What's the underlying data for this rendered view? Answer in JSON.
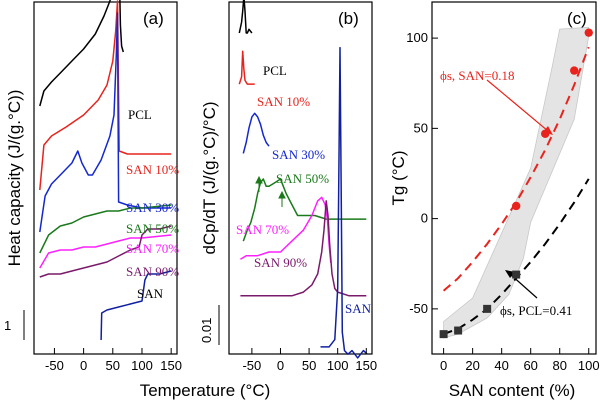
{
  "figure": {
    "panel_a": {
      "label": "(a)",
      "ylabel": "Heat capacity (J/(g.°C))",
      "scale_bar_label": "1"
    },
    "panel_b": {
      "label": "(b)",
      "ylabel": "dCp/dT (J/(g.°C)/°C)",
      "scale_bar_label": "0.01"
    },
    "panel_c": {
      "label": "(c)",
      "ylabel": "Tg (°C)",
      "xlabel": "SAN content (%)",
      "annotation_san": "ϕs, SAN=0.18",
      "annotation_pcl": "ϕs, PCL=0.41"
    },
    "shared_xlabel": "Temperature (°C)"
  },
  "chart_data": [
    {
      "id": "a",
      "type": "line",
      "title": "(a)",
      "xlabel": "Temperature (°C)",
      "ylabel": "Heat capacity (J/(g.°C))",
      "xlim": [
        -85,
        160
      ],
      "xticks": [
        -50,
        0,
        50,
        100,
        150
      ],
      "scale_bar": 1,
      "series": [
        {
          "name": "PCL",
          "color": "#000000",
          "offset": 0,
          "pts": [
            [
              -75,
              7.8
            ],
            [
              -68,
              8.3
            ],
            [
              -55,
              8.6
            ],
            [
              -40,
              8.9
            ],
            [
              -20,
              9.3
            ],
            [
              0,
              9.7
            ],
            [
              20,
              10.2
            ],
            [
              35,
              10.8
            ],
            [
              45,
              11.3
            ],
            [
              52,
              11.8
            ],
            [
              56,
              12.8
            ],
            [
              59,
              13.3
            ],
            [
              61,
              12.5
            ],
            [
              63,
              10.5
            ],
            [
              65,
              9.8
            ],
            [
              68,
              9.6
            ]
          ]
        },
        {
          "name": "SAN 10%",
          "color": "#e8231d",
          "offset": 0,
          "pts": [
            [
              -75,
              5.0
            ],
            [
              -68,
              6.5
            ],
            [
              -55,
              6.8
            ],
            [
              -30,
              7.1
            ],
            [
              0,
              7.5
            ],
            [
              25,
              8.0
            ],
            [
              40,
              8.5
            ],
            [
              50,
              9.3
            ],
            [
              55,
              10.3
            ],
            [
              58,
              11.3
            ],
            [
              61,
              6.3
            ],
            [
              75,
              6.2
            ],
            [
              100,
              6.2
            ],
            [
              150,
              6.2
            ]
          ]
        },
        {
          "name": "SAN 30%",
          "color": "#1528d0",
          "offset": 0,
          "pts": [
            [
              -75,
              3.6
            ],
            [
              -66,
              4.8
            ],
            [
              -55,
              5.2
            ],
            [
              -40,
              5.5
            ],
            [
              -20,
              5.9
            ],
            [
              -10,
              6.3
            ],
            [
              -3,
              5.9
            ],
            [
              8,
              5.5
            ],
            [
              15,
              5.5
            ],
            [
              30,
              6.0
            ],
            [
              45,
              6.8
            ],
            [
              52,
              7.5
            ],
            [
              56,
              9.5
            ],
            [
              58,
              10.9
            ],
            [
              60,
              4.6
            ],
            [
              75,
              4.5
            ],
            [
              100,
              4.4
            ],
            [
              150,
              4.4
            ]
          ]
        },
        {
          "name": "SAN 50%",
          "color": "#1a7a1a",
          "offset": 0,
          "pts": [
            [
              -75,
              2.9
            ],
            [
              -60,
              3.5
            ],
            [
              -40,
              3.8
            ],
            [
              -20,
              3.9
            ],
            [
              0,
              4.1
            ],
            [
              20,
              4.2
            ],
            [
              40,
              4.3
            ],
            [
              60,
              4.3
            ],
            [
              80,
              4.4
            ],
            [
              100,
              4.4
            ],
            [
              150,
              4.5
            ]
          ]
        },
        {
          "name": "SAN 70%",
          "color": "#ff20ff",
          "offset": 0,
          "pts": [
            [
              -75,
              2.4
            ],
            [
              -60,
              2.9
            ],
            [
              -40,
              3.0
            ],
            [
              -20,
              3.0
            ],
            [
              0,
              3.1
            ],
            [
              20,
              3.1
            ],
            [
              40,
              3.2
            ],
            [
              60,
              3.3
            ],
            [
              80,
              3.4
            ],
            [
              100,
              3.4
            ],
            [
              150,
              3.5
            ]
          ]
        },
        {
          "name": "SAN 90%",
          "color": "#7a1a6a",
          "offset": 0,
          "pts": [
            [
              -75,
              2.1
            ],
            [
              -60,
              2.2
            ],
            [
              -40,
              2.2
            ],
            [
              -20,
              2.3
            ],
            [
              0,
              2.4
            ],
            [
              20,
              2.5
            ],
            [
              40,
              2.6
            ],
            [
              60,
              2.8
            ],
            [
              80,
              3.0
            ],
            [
              95,
              3.1
            ],
            [
              100,
              3.5
            ],
            [
              110,
              3.7
            ],
            [
              130,
              3.7
            ],
            [
              150,
              3.8
            ]
          ]
        },
        {
          "name": "SAN",
          "color": "#1020a0",
          "offset": 0,
          "pts": [
            [
              30,
              0.0
            ],
            [
              31,
              0.9
            ],
            [
              40,
              1.0
            ],
            [
              60,
              1.1
            ],
            [
              80,
              1.2
            ],
            [
              100,
              1.3
            ],
            [
              105,
              2.0
            ],
            [
              110,
              2.2
            ],
            [
              130,
              2.2
            ],
            [
              150,
              2.3
            ]
          ]
        }
      ]
    },
    {
      "id": "b",
      "type": "line",
      "title": "(b)",
      "xlabel": "Temperature (°C)",
      "ylabel": "dCp/dT (J/(g.°C)/°C)",
      "xlim": [
        -90,
        160
      ],
      "xticks": [
        -50,
        0,
        50,
        100,
        150
      ],
      "scale_bar": 0.01,
      "series": [
        {
          "name": "PCL",
          "color": "#000000",
          "pts": [
            [
              -72,
              0.08
            ],
            [
              -68,
              0.083
            ],
            [
              -66,
              0.086
            ],
            [
              -64,
              0.09
            ],
            [
              -62,
              0.086
            ],
            [
              -60,
              0.08
            ],
            [
              -58,
              0.08
            ],
            [
              -55,
              0.081
            ],
            [
              -50,
              0.08
            ]
          ]
        },
        {
          "name": "SAN 10%",
          "color": "#e8231d",
          "pts": [
            [
              -72,
              0.066
            ],
            [
              -68,
              0.068
            ],
            [
              -66,
              0.075
            ],
            [
              -64,
              0.07
            ],
            [
              -62,
              0.067
            ],
            [
              -58,
              0.066
            ],
            [
              -50,
              0.066
            ],
            [
              -45,
              0.066
            ]
          ]
        },
        {
          "name": "SAN 30%",
          "color": "#1528d0",
          "pts": [
            [
              -65,
              0.047
            ],
            [
              -60,
              0.05
            ],
            [
              -55,
              0.054
            ],
            [
              -50,
              0.057
            ],
            [
              -45,
              0.058
            ],
            [
              -40,
              0.057
            ],
            [
              -35,
              0.055
            ],
            [
              -30,
              0.052
            ],
            [
              -25,
              0.05
            ],
            [
              -20,
              0.049
            ]
          ]
        },
        {
          "name": "SAN 50%",
          "color": "#1a7a1a",
          "pts": [
            [
              -65,
              0.023
            ],
            [
              -58,
              0.026
            ],
            [
              -52,
              0.028
            ],
            [
              -45,
              0.032
            ],
            [
              -40,
              0.036
            ],
            [
              -35,
              0.039
            ],
            [
              -30,
              0.04
            ],
            [
              -25,
              0.038
            ],
            [
              -20,
              0.038
            ],
            [
              -10,
              0.039
            ],
            [
              0,
              0.04
            ],
            [
              5,
              0.038
            ],
            [
              10,
              0.036
            ],
            [
              20,
              0.033
            ],
            [
              30,
              0.03
            ],
            [
              40,
              0.03
            ],
            [
              60,
              0.03
            ],
            [
              80,
              0.029
            ],
            [
              100,
              0.029
            ],
            [
              130,
              0.029
            ],
            [
              150,
              0.029
            ]
          ]
        },
        {
          "name": "SAN 70%",
          "color": "#ff20ff",
          "pts": [
            [
              -70,
              0.018
            ],
            [
              -60,
              0.019
            ],
            [
              -40,
              0.019
            ],
            [
              -20,
              0.02
            ],
            [
              0,
              0.02
            ],
            [
              20,
              0.023
            ],
            [
              40,
              0.026
            ],
            [
              55,
              0.03
            ],
            [
              65,
              0.034
            ],
            [
              72,
              0.035
            ],
            [
              78,
              0.033
            ],
            [
              82,
              0.029
            ],
            [
              85,
              0.022
            ],
            [
              88,
              0.017
            ]
          ]
        },
        {
          "name": "SAN 90%",
          "color": "#7a1a6a",
          "pts": [
            [
              -70,
              0.008
            ],
            [
              -50,
              0.008
            ],
            [
              -30,
              0.008
            ],
            [
              0,
              0.008
            ],
            [
              20,
              0.008
            ],
            [
              40,
              0.009
            ],
            [
              55,
              0.011
            ],
            [
              65,
              0.014
            ],
            [
              72,
              0.02
            ],
            [
              76,
              0.026
            ],
            [
              80,
              0.034
            ],
            [
              83,
              0.03
            ],
            [
              86,
              0.022
            ],
            [
              90,
              0.014
            ],
            [
              95,
              0.01
            ],
            [
              100,
              0.009
            ],
            [
              120,
              0.008
            ],
            [
              150,
              0.008
            ]
          ]
        },
        {
          "name": "SAN",
          "color": "#1020a0",
          "pts": [
            [
              70,
              -0.006
            ],
            [
              85,
              -0.006
            ],
            [
              95,
              -0.004
            ],
            [
              100,
              0.01
            ],
            [
              102,
              0.04
            ],
            [
              104,
              0.076
            ],
            [
              106,
              0.04
            ],
            [
              108,
              -0.002
            ],
            [
              112,
              -0.007
            ],
            [
              118,
              -0.008
            ],
            [
              125,
              -0.007
            ],
            [
              135,
              -0.009
            ],
            [
              145,
              -0.007
            ],
            [
              152,
              -0.008
            ]
          ]
        }
      ]
    },
    {
      "id": "c",
      "type": "scatter",
      "title": "(c)",
      "xlabel": "SAN content (%)",
      "ylabel": "Tg (°C)",
      "xlim": [
        -8,
        105
      ],
      "ylim": [
        -75,
        120
      ],
      "xticks": [
        0,
        20,
        40,
        60,
        80,
        100
      ],
      "yticks": [
        -50,
        0,
        50,
        100
      ],
      "series": [
        {
          "name": "SAN",
          "color": "#e8231d",
          "marker": "circle",
          "x": [
            50,
            70,
            90,
            100
          ],
          "y": [
            7,
            47,
            82,
            103
          ]
        },
        {
          "name": "PCL",
          "color": "#333333",
          "marker": "square",
          "x": [
            0,
            10,
            30,
            50
          ],
          "y": [
            -64,
            -62,
            -50,
            -31
          ]
        }
      ],
      "fits": [
        {
          "name": "SAN fit",
          "color": "#e8231d",
          "x": [
            0,
            10,
            20,
            30,
            40,
            50,
            60,
            70,
            80,
            90,
            100
          ],
          "y": [
            -40,
            -33,
            -24,
            -14,
            -3,
            9,
            23,
            38,
            55,
            74,
            95
          ]
        },
        {
          "name": "PCL fit",
          "color": "#000000",
          "x": [
            0,
            10,
            20,
            30,
            40,
            50,
            60,
            70,
            80,
            90,
            100
          ],
          "y": [
            -64,
            -61,
            -56,
            -50,
            -42,
            -33,
            -24,
            -14,
            -3,
            9,
            22
          ]
        }
      ],
      "band": {
        "upper": [
          [
            0,
            -57
          ],
          [
            20,
            -44
          ],
          [
            40,
            -8
          ],
          [
            60,
            28
          ],
          [
            75,
            85
          ],
          [
            80,
            105
          ],
          [
            100,
            106
          ]
        ],
        "lower": [
          [
            100,
            101
          ],
          [
            90,
            55
          ],
          [
            80,
            36
          ],
          [
            70,
            17
          ],
          [
            60,
            -2
          ],
          [
            55,
            -22
          ],
          [
            45,
            -42
          ],
          [
            30,
            -55
          ],
          [
            10,
            -64
          ],
          [
            0,
            -66
          ]
        ]
      }
    }
  ]
}
